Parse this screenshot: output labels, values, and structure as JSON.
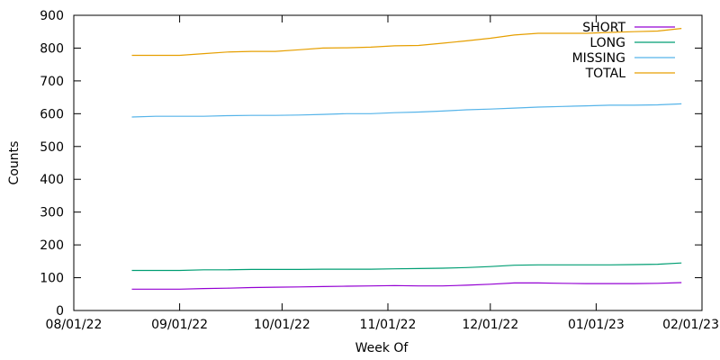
{
  "chart_data": {
    "type": "line",
    "xlabel": "Week Of",
    "ylabel": "Counts",
    "x_range": [
      "2022-08-01",
      "2023-02-01"
    ],
    "ylim": [
      0,
      900
    ],
    "y_ticks": [
      0,
      100,
      200,
      300,
      400,
      500,
      600,
      700,
      800,
      900
    ],
    "x_ticks": [
      {
        "date": "2022-08-01",
        "label": "08/01/22"
      },
      {
        "date": "2022-09-01",
        "label": "09/01/22"
      },
      {
        "date": "2022-10-01",
        "label": "10/01/22"
      },
      {
        "date": "2022-11-01",
        "label": "11/01/22"
      },
      {
        "date": "2022-12-01",
        "label": "12/01/22"
      },
      {
        "date": "2023-01-01",
        "label": "01/01/23"
      },
      {
        "date": "2023-02-01",
        "label": "02/01/23"
      }
    ],
    "grid": false,
    "legend_position": "top-right",
    "x": [
      "2022-08-18",
      "2022-08-25",
      "2022-09-01",
      "2022-09-08",
      "2022-09-15",
      "2022-09-22",
      "2022-09-29",
      "2022-10-06",
      "2022-10-13",
      "2022-10-20",
      "2022-10-27",
      "2022-11-03",
      "2022-11-10",
      "2022-11-17",
      "2022-11-24",
      "2022-12-01",
      "2022-12-08",
      "2022-12-15",
      "2022-12-22",
      "2022-12-29",
      "2023-01-05",
      "2023-01-12",
      "2023-01-19",
      "2023-01-26"
    ],
    "series": [
      {
        "name": "SHORT",
        "color": "#9400d3",
        "values": [
          65,
          65,
          65,
          67,
          68,
          70,
          71,
          72,
          73,
          74,
          75,
          76,
          75,
          75,
          77,
          80,
          84,
          84,
          83,
          82,
          82,
          82,
          83,
          85
        ]
      },
      {
        "name": "LONG",
        "color": "#009e73",
        "values": [
          122,
          122,
          122,
          124,
          124,
          125,
          125,
          125,
          126,
          126,
          126,
          127,
          128,
          129,
          131,
          134,
          138,
          139,
          139,
          139,
          139,
          140,
          141,
          145
        ]
      },
      {
        "name": "MISSING",
        "color": "#56b4e9",
        "values": [
          590,
          592,
          592,
          592,
          594,
          595,
          595,
          596,
          598,
          600,
          600,
          603,
          605,
          608,
          612,
          614,
          617,
          620,
          622,
          624,
          626,
          626,
          627,
          630
        ]
      },
      {
        "name": "TOTAL",
        "color": "#e69f00",
        "values": [
          778,
          778,
          778,
          783,
          788,
          790,
          790,
          795,
          800,
          801,
          803,
          807,
          808,
          815,
          822,
          830,
          840,
          845,
          845,
          845,
          848,
          850,
          852,
          860
        ]
      }
    ]
  }
}
